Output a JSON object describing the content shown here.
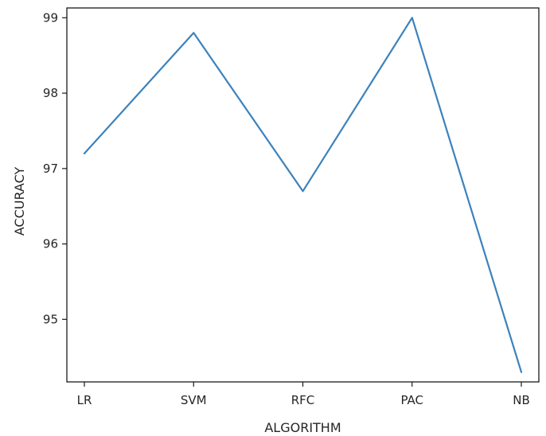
{
  "chart_data": {
    "type": "line",
    "title": "",
    "xlabel": "ALGORITHM",
    "ylabel": "ACCURACY",
    "categories": [
      "LR",
      "SVM",
      "RFC",
      "PAC",
      "NB"
    ],
    "series": [
      {
        "values": [
          97.2,
          98.8,
          96.7,
          99.0,
          94.3
        ],
        "color": "#3b82bc"
      }
    ],
    "ylim": [
      94.17,
      99.13
    ],
    "yticks": [
      95,
      96,
      97,
      98,
      99
    ],
    "grid": false,
    "legend": "none"
  }
}
